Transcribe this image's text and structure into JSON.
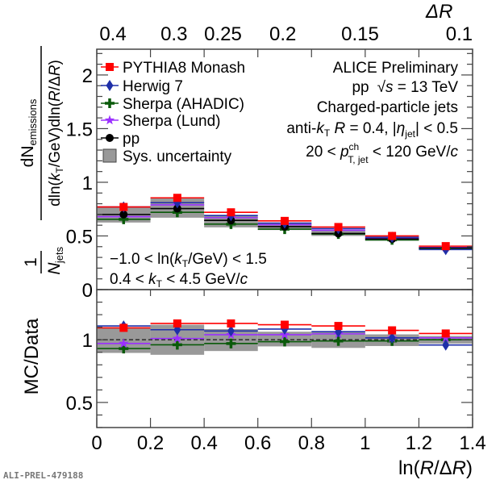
{
  "chart_data": [
    {
      "type": "line",
      "panel": "upper",
      "title": "",
      "xlabel": "ln(R/ΔR)",
      "ylabel": "1/N_jets dN_emissions / dln(k_T/GeV)dln(R/ΔR)",
      "ylabel_parts": {
        "frac": "1",
        "njets": "N",
        "njets_sub": "jets",
        "num": "dN",
        "num_sub": "emissions",
        "den_a": "dln(",
        "den_k": "k",
        "den_ksub": "T",
        "den_b": "/GeV)dln(",
        "den_R": "R",
        "den_c": "/Δ",
        "den_R2": "R",
        "den_d": ")"
      },
      "xlim": [
        0,
        1.4
      ],
      "ylim": [
        0,
        2.24
      ],
      "yticks": [
        0,
        0.5,
        1,
        1.5,
        2
      ],
      "ytick_labels": [
        "0",
        "0.5",
        "1",
        "1.5",
        "2"
      ],
      "bin_edges": [
        0,
        0.2,
        0.4,
        0.6,
        0.8,
        1.0,
        1.2,
        1.4
      ],
      "bin_centers": [
        0.1,
        0.3,
        0.5,
        0.7,
        0.9,
        1.1,
        1.3
      ],
      "series": [
        {
          "name": "PYTHIA8 Monash",
          "color": "#ff0000",
          "marker": "square",
          "values": [
            0.77,
            0.855,
            0.72,
            0.64,
            0.583,
            0.5,
            0.405
          ]
        },
        {
          "name": "Herwig 7",
          "color": "#1f2fa8",
          "marker": "diamond",
          "values": [
            0.77,
            0.81,
            0.69,
            0.62,
            0.568,
            0.488,
            0.373
          ]
        },
        {
          "name": "Sherpa (AHADIC)",
          "color": "#0a5a0a",
          "marker": "cross",
          "values": [
            0.655,
            0.72,
            0.61,
            0.563,
            0.518,
            0.463,
            0.385
          ]
        },
        {
          "name": "Sherpa (Lund)",
          "color": "#9b30ff",
          "marker": "star",
          "values": [
            0.68,
            0.79,
            0.67,
            0.605,
            0.553,
            0.48,
            0.392
          ]
        },
        {
          "name": "pp",
          "color": "#000000",
          "marker": "circle",
          "values": [
            0.7,
            0.755,
            0.645,
            0.587,
            0.523,
            0.472,
            0.388
          ]
        }
      ],
      "sys_uncertainty": {
        "name": "Sys. uncertainty",
        "color": "#999999",
        "low": [
          0.625,
          0.67,
          0.58,
          0.555,
          0.5,
          0.455,
          0.378
        ],
        "high": [
          0.775,
          0.855,
          0.69,
          0.62,
          0.555,
          0.49,
          0.398
        ]
      },
      "annotations": [
        "−1.0 < ln(k_T/GeV) < 1.5",
        "0.4 < k_T < 4.5 GeV/c"
      ]
    },
    {
      "type": "line",
      "panel": "ratio",
      "ylabel": "MC/Data",
      "xlabel": "ln(R/ΔR)",
      "xlim": [
        0,
        1.4
      ],
      "ylim": [
        0.3,
        1.4
      ],
      "yticks": [
        0.5,
        1
      ],
      "ytick_labels": [
        "0.5",
        "1"
      ],
      "xticks": [
        0,
        0.2,
        0.4,
        0.6,
        0.8,
        1,
        1.2,
        1.4
      ],
      "xtick_labels": [
        "0",
        "0.2",
        "0.4",
        "0.6",
        "0.8",
        "1",
        "1.2",
        "1.4"
      ],
      "reference_line": 1.0,
      "series": [
        {
          "name": "PYTHIA8 Monash",
          "color": "#ff0000",
          "marker": "square",
          "values": [
            1.095,
            1.13,
            1.13,
            1.12,
            1.11,
            1.075,
            1.05
          ]
        },
        {
          "name": "Herwig 7",
          "color": "#1f2fa8",
          "marker": "diamond",
          "values": [
            1.11,
            1.08,
            1.07,
            1.085,
            1.064,
            1.015,
            0.958
          ]
        },
        {
          "name": "Sherpa (AHADIC)",
          "color": "#0a5a0a",
          "marker": "cross",
          "values": [
            0.93,
            0.96,
            0.97,
            0.985,
            0.99,
            0.99,
            1.0
          ]
        },
        {
          "name": "Sherpa (Lund)",
          "color": "#9b30ff",
          "marker": "star",
          "values": [
            0.97,
            1.01,
            1.04,
            1.04,
            1.047,
            1.015,
            1.015
          ]
        }
      ],
      "sys_uncertainty": {
        "low": [
          0.895,
          0.88,
          0.91,
          0.947,
          0.935,
          0.95,
          0.97
        ],
        "high": [
          1.095,
          1.12,
          1.085,
          1.064,
          1.064,
          1.043,
          1.03
        ]
      }
    }
  ],
  "top_axis": {
    "title": "ΔR",
    "R": 0.4,
    "tick_values": [
      0.4,
      0.3,
      0.25,
      0.2,
      0.15,
      0.1
    ],
    "tick_labels": [
      "0.4",
      "0.3",
      "0.25",
      "0.2",
      "0.15",
      "0.1"
    ]
  },
  "legend": {
    "placement": "top-left",
    "entries": [
      "PYTHIA8 Monash",
      "Herwig 7",
      "Sherpa (AHADIC)",
      "Sherpa (Lund)",
      "pp",
      "Sys. uncertainty"
    ]
  },
  "info": {
    "placement": "top-right",
    "line1": "ALICE Preliminary",
    "line2_a": "pp",
    "line2_b": "s",
    "line2_c": " = 13 TeV",
    "line3": "Charged-particle jets",
    "line4_a": "anti-",
    "line4_k": "k",
    "line4_ksub": "T",
    "line4_R": "R",
    "line4_b": " = 0.4, |",
    "line4_eta": "η",
    "line4_etasub": "jet",
    "line4_c": "| < 0.5",
    "line5_a": "20 < ",
    "line5_p": "p",
    "line5_sup": "ch",
    "line5_sub": "T, jet",
    "line5_b": " < 120 GeV/",
    "line5_c": "c"
  },
  "kt_range": {
    "line1_a": "−1.0 < ln(",
    "line1_k": "k",
    "line1_ksub": "T",
    "line1_b": "/GeV) < 1.5",
    "line2_a": "0.4 < ",
    "line2_k": "k",
    "line2_ksub": "T",
    "line2_b": " < 4.5 GeV/",
    "line2_c": "c"
  },
  "xlabel_parts": {
    "a": "ln(",
    "R": "R",
    "b": "/Δ",
    "R2": "R",
    "c": ")"
  },
  "watermark": "ALI-PREL-479188"
}
